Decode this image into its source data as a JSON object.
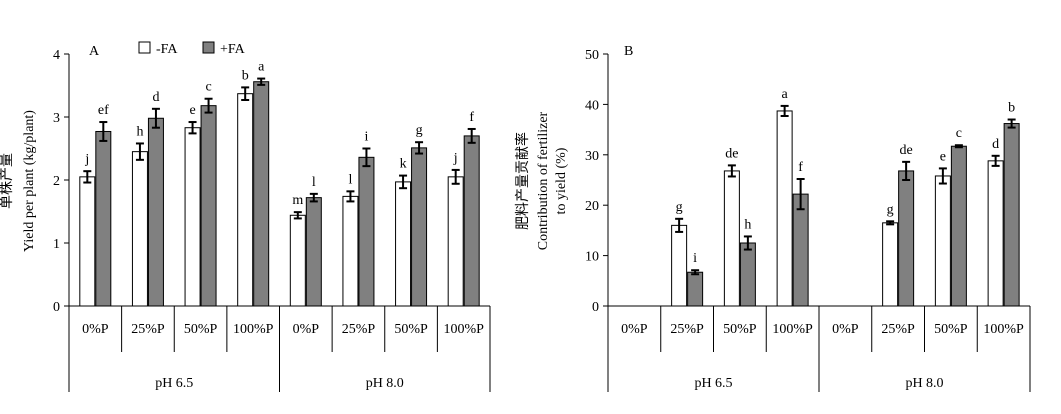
{
  "chart_data": [
    {
      "type": "bar",
      "panel_label": "A",
      "ylabel_zh": "单株产量",
      "ylabel": "Yield per plant (kg/plant)",
      "ylim": [
        0,
        4
      ],
      "yticks": [
        "0",
        "1",
        "2",
        "3",
        "4"
      ],
      "groups": [
        "pH 6.5",
        "pH 8.0"
      ],
      "categories": [
        "0%P",
        "25%P",
        "50%P",
        "100%P",
        "0%P",
        "25%P",
        "50%P",
        "100%P"
      ],
      "legend": {
        "placement": "top-left",
        "entries": [
          "-FA",
          "+FA"
        ]
      },
      "series": [
        {
          "name": "-FA",
          "color": "#ffffff",
          "values": [
            2.05,
            2.45,
            2.83,
            3.37,
            1.44,
            1.74,
            1.97,
            2.05
          ],
          "errors": [
            0.09,
            0.13,
            0.09,
            0.1,
            0.05,
            0.08,
            0.1,
            0.11
          ],
          "labels": [
            "j",
            "h",
            "e",
            "b",
            "m",
            "l",
            "k",
            "j"
          ]
        },
        {
          "name": "+FA",
          "color": "#808080",
          "values": [
            2.77,
            2.98,
            3.18,
            3.56,
            1.72,
            2.36,
            2.51,
            2.7
          ],
          "errors": [
            0.15,
            0.15,
            0.11,
            0.05,
            0.06,
            0.14,
            0.09,
            0.11
          ],
          "labels": [
            "ef",
            "d",
            "c",
            "a",
            "l",
            "i",
            "g",
            "f"
          ]
        }
      ]
    },
    {
      "type": "bar",
      "panel_label": "B",
      "ylabel_zh": "肥料产量贡献率",
      "ylabel": "Contribution of fertilizer",
      "ylabel2": "to yield (%)",
      "ylim": [
        0,
        50
      ],
      "yticks": [
        "0",
        "10",
        "20",
        "30",
        "40",
        "50"
      ],
      "groups": [
        "pH 6.5",
        "pH 8.0"
      ],
      "categories": [
        "0%P",
        "25%P",
        "50%P",
        "100%P",
        "0%P",
        "25%P",
        "50%P",
        "100%P"
      ],
      "series": [
        {
          "name": "-FA",
          "color": "#ffffff",
          "values": [
            null,
            16.0,
            26.8,
            38.7,
            null,
            16.5,
            25.8,
            28.8
          ],
          "errors": [
            null,
            1.3,
            1.1,
            1.0,
            null,
            0.3,
            1.5,
            1.0
          ],
          "labels": [
            "",
            "g",
            "de",
            "a",
            "",
            "g",
            "e",
            "d"
          ]
        },
        {
          "name": "+FA",
          "color": "#808080",
          "values": [
            null,
            6.7,
            12.5,
            22.2,
            null,
            26.8,
            31.7,
            36.2
          ],
          "errors": [
            null,
            0.4,
            1.3,
            3.0,
            null,
            1.8,
            0.2,
            0.8
          ],
          "labels": [
            "",
            "i",
            "h",
            "f",
            "",
            "de",
            "c",
            "b"
          ]
        }
      ]
    }
  ]
}
